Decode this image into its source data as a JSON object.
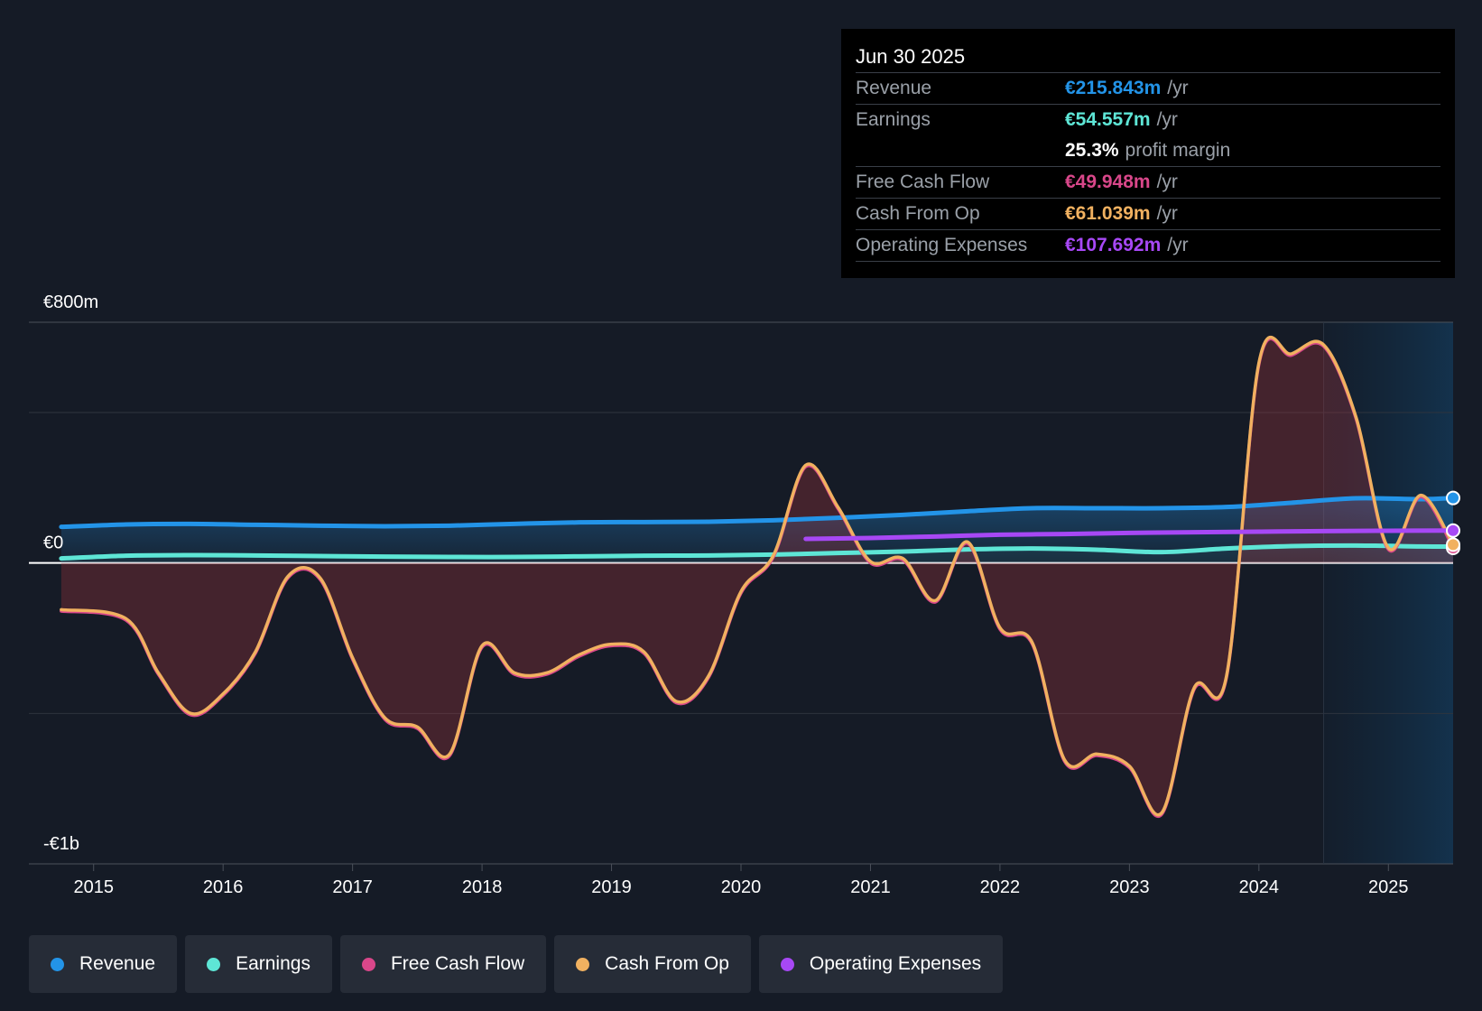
{
  "tooltip": {
    "date": "Jun 30 2025",
    "rows": [
      {
        "label": "Revenue",
        "value": "€215.843m",
        "unit": "/yr",
        "color": "#2394e8"
      },
      {
        "label": "Earnings",
        "value": "€54.557m",
        "unit": "/yr",
        "color": "#5ee6d6"
      },
      {
        "label": "",
        "value": "25.3%",
        "unit": "profit margin",
        "color": "#ffffff"
      },
      {
        "label": "Free Cash Flow",
        "value": "€49.948m",
        "unit": "/yr",
        "color": "#d9478a"
      },
      {
        "label": "Cash From Op",
        "value": "€61.039m",
        "unit": "/yr",
        "color": "#f1b160"
      },
      {
        "label": "Operating Expenses",
        "value": "€107.692m",
        "unit": "/yr",
        "color": "#a748f5"
      }
    ]
  },
  "legend": [
    {
      "label": "Revenue",
      "color": "#2394e8"
    },
    {
      "label": "Earnings",
      "color": "#5ee6d6"
    },
    {
      "label": "Free Cash Flow",
      "color": "#d9478a"
    },
    {
      "label": "Cash From Op",
      "color": "#f1b160"
    },
    {
      "label": "Operating Expenses",
      "color": "#a748f5"
    }
  ],
  "chart_data": {
    "type": "line",
    "x_ticks": [
      "2015",
      "2016",
      "2017",
      "2018",
      "2019",
      "2020",
      "2021",
      "2022",
      "2023",
      "2024",
      "2025"
    ],
    "y_tick_labels": [
      "€800m",
      "€0",
      "-€1b"
    ],
    "ylim": [
      -1000,
      800
    ],
    "xlim": [
      2014.5,
      2025.5
    ],
    "forecast_start": 2024.5,
    "grid": true,
    "legend_position": "bottom",
    "series": [
      {
        "name": "Revenue",
        "color": "#2394e8",
        "points": [
          [
            2014.75,
            120
          ],
          [
            2015.25,
            128
          ],
          [
            2015.75,
            130
          ],
          [
            2016.25,
            127
          ],
          [
            2016.75,
            124
          ],
          [
            2017.25,
            122
          ],
          [
            2017.75,
            124
          ],
          [
            2018.25,
            130
          ],
          [
            2018.75,
            135
          ],
          [
            2019.25,
            136
          ],
          [
            2019.75,
            137
          ],
          [
            2020.25,
            142
          ],
          [
            2020.75,
            150
          ],
          [
            2021.25,
            160
          ],
          [
            2021.75,
            172
          ],
          [
            2022.25,
            182
          ],
          [
            2022.75,
            182
          ],
          [
            2023.25,
            182
          ],
          [
            2023.75,
            186
          ],
          [
            2024.25,
            200
          ],
          [
            2024.75,
            215
          ],
          [
            2025.25,
            212
          ],
          [
            2025.5,
            216
          ]
        ]
      },
      {
        "name": "Earnings",
        "color": "#5ee6d6",
        "points": [
          [
            2014.75,
            15
          ],
          [
            2015.25,
            24
          ],
          [
            2015.75,
            26
          ],
          [
            2016.25,
            25
          ],
          [
            2016.75,
            23
          ],
          [
            2017.25,
            21
          ],
          [
            2017.75,
            20
          ],
          [
            2018.25,
            20
          ],
          [
            2018.75,
            22
          ],
          [
            2019.25,
            24
          ],
          [
            2019.75,
            25
          ],
          [
            2020.25,
            28
          ],
          [
            2020.75,
            33
          ],
          [
            2021.25,
            38
          ],
          [
            2021.75,
            45
          ],
          [
            2022.25,
            48
          ],
          [
            2022.75,
            44
          ],
          [
            2023.25,
            36
          ],
          [
            2023.75,
            48
          ],
          [
            2024.25,
            56
          ],
          [
            2024.75,
            58
          ],
          [
            2025.25,
            55
          ],
          [
            2025.5,
            54.557
          ]
        ]
      },
      {
        "name": "Free Cash Flow",
        "color": "#d9478a",
        "points": [
          [
            2014.75,
            -160
          ],
          [
            2015.25,
            -190
          ],
          [
            2015.5,
            -370
          ],
          [
            2015.75,
            -505
          ],
          [
            2016.0,
            -440
          ],
          [
            2016.25,
            -300
          ],
          [
            2016.5,
            -50
          ],
          [
            2016.75,
            -55
          ],
          [
            2017.0,
            -320
          ],
          [
            2017.25,
            -520
          ],
          [
            2017.5,
            -550
          ],
          [
            2017.75,
            -640
          ],
          [
            2018.0,
            -280
          ],
          [
            2018.25,
            -370
          ],
          [
            2018.5,
            -370
          ],
          [
            2018.75,
            -310
          ],
          [
            2019.0,
            -275
          ],
          [
            2019.25,
            -300
          ],
          [
            2019.5,
            -465
          ],
          [
            2019.75,
            -380
          ],
          [
            2020.0,
            -100
          ],
          [
            2020.25,
            20
          ],
          [
            2020.5,
            320
          ],
          [
            2020.75,
            180
          ],
          [
            2021.0,
            0
          ],
          [
            2021.25,
            10
          ],
          [
            2021.5,
            -130
          ],
          [
            2021.75,
            65
          ],
          [
            2022.0,
            -220
          ],
          [
            2022.25,
            -270
          ],
          [
            2022.5,
            -660
          ],
          [
            2022.75,
            -640
          ],
          [
            2023.0,
            -680
          ],
          [
            2023.25,
            -835
          ],
          [
            2023.5,
            -420
          ],
          [
            2023.75,
            -380
          ],
          [
            2024.0,
            660
          ],
          [
            2024.25,
            690
          ],
          [
            2024.5,
            720
          ],
          [
            2024.75,
            480
          ],
          [
            2025.0,
            45
          ],
          [
            2025.25,
            220
          ],
          [
            2025.5,
            49.948
          ]
        ]
      },
      {
        "name": "Cash From Op",
        "color": "#f1b160",
        "points": [
          [
            2014.75,
            -155
          ],
          [
            2015.25,
            -185
          ],
          [
            2015.5,
            -365
          ],
          [
            2015.75,
            -500
          ],
          [
            2016.0,
            -435
          ],
          [
            2016.25,
            -295
          ],
          [
            2016.5,
            -45
          ],
          [
            2016.75,
            -50
          ],
          [
            2017.0,
            -315
          ],
          [
            2017.25,
            -515
          ],
          [
            2017.5,
            -545
          ],
          [
            2017.75,
            -635
          ],
          [
            2018.0,
            -275
          ],
          [
            2018.25,
            -365
          ],
          [
            2018.5,
            -365
          ],
          [
            2018.75,
            -305
          ],
          [
            2019.0,
            -270
          ],
          [
            2019.25,
            -295
          ],
          [
            2019.5,
            -460
          ],
          [
            2019.75,
            -375
          ],
          [
            2020.0,
            -95
          ],
          [
            2020.25,
            25
          ],
          [
            2020.5,
            325
          ],
          [
            2020.75,
            185
          ],
          [
            2021.0,
            5
          ],
          [
            2021.25,
            15
          ],
          [
            2021.5,
            -125
          ],
          [
            2021.75,
            70
          ],
          [
            2022.0,
            -215
          ],
          [
            2022.25,
            -265
          ],
          [
            2022.5,
            -655
          ],
          [
            2022.75,
            -635
          ],
          [
            2023.0,
            -675
          ],
          [
            2023.25,
            -830
          ],
          [
            2023.5,
            -415
          ],
          [
            2023.75,
            -375
          ],
          [
            2024.0,
            665
          ],
          [
            2024.25,
            695
          ],
          [
            2024.5,
            725
          ],
          [
            2024.75,
            485
          ],
          [
            2025.0,
            50
          ],
          [
            2025.25,
            225
          ],
          [
            2025.5,
            61.039
          ]
        ]
      },
      {
        "name": "Operating Expenses",
        "color": "#a748f5",
        "points": [
          [
            2020.5,
            80
          ],
          [
            2021.0,
            83
          ],
          [
            2021.5,
            88
          ],
          [
            2022.0,
            94
          ],
          [
            2022.5,
            96
          ],
          [
            2023.0,
            100
          ],
          [
            2023.5,
            102
          ],
          [
            2024.0,
            104
          ],
          [
            2024.5,
            106
          ],
          [
            2025.0,
            107
          ],
          [
            2025.5,
            107.692
          ]
        ]
      }
    ]
  }
}
